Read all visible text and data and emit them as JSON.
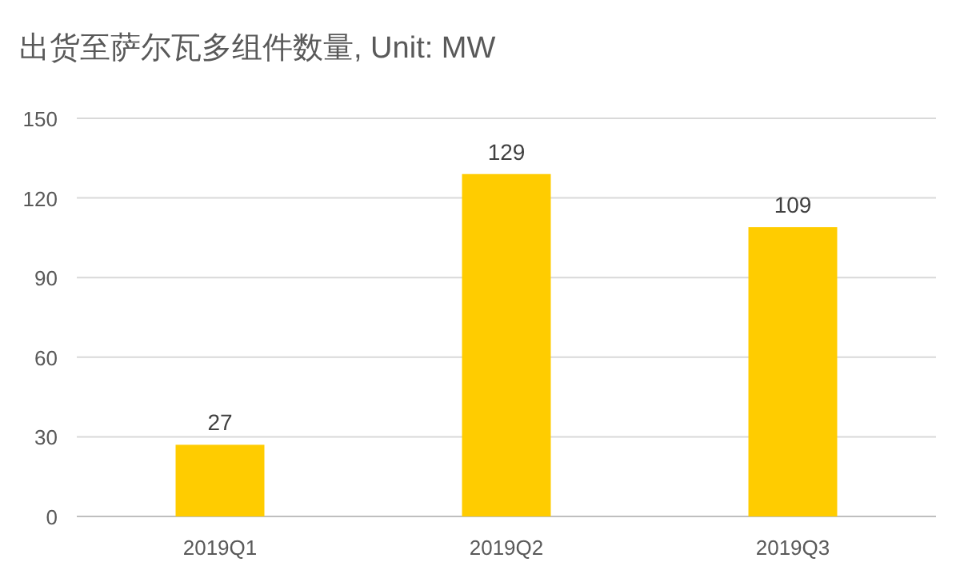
{
  "chart_data": {
    "type": "bar",
    "title": "出货至萨尔瓦多组件数量, Unit: MW",
    "categories": [
      "2019Q1",
      "2019Q2",
      "2019Q3"
    ],
    "values": [
      27,
      129,
      109
    ],
    "color": "#ffcc00",
    "ylim": [
      0,
      150
    ],
    "yticks": [
      0,
      30,
      60,
      90,
      120,
      150
    ],
    "grid": "y",
    "data_labels": true
  }
}
